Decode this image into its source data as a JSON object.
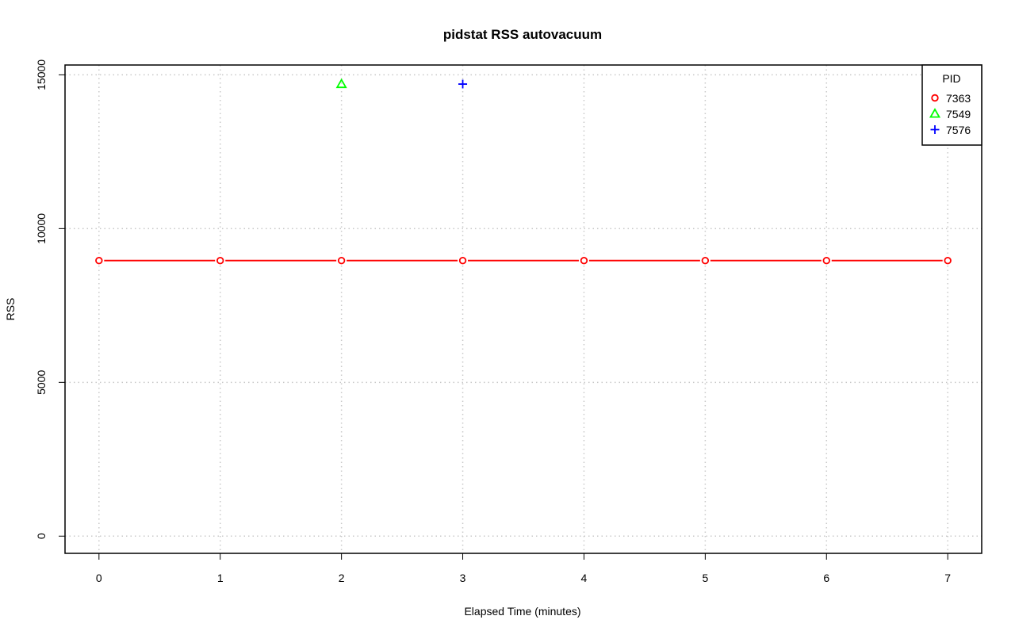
{
  "chart_data": {
    "type": "line",
    "title": "pidstat RSS autovacuum",
    "xlabel": "Elapsed Time (minutes)",
    "ylabel": "RSS",
    "xlim": [
      -0.28,
      7.28
    ],
    "ylim": [
      -560,
      15320
    ],
    "x_ticks": [
      0,
      1,
      2,
      3,
      4,
      5,
      6,
      7
    ],
    "y_ticks": [
      0,
      5000,
      10000,
      15000
    ],
    "grid": true,
    "legend": {
      "title": "PID",
      "position": "top-right"
    },
    "series": [
      {
        "name": "7363",
        "color": "#ff0000",
        "marker": "circle",
        "line": true,
        "points": [
          {
            "x": 0,
            "y": 8960
          },
          {
            "x": 1,
            "y": 8960
          },
          {
            "x": 2,
            "y": 8960
          },
          {
            "x": 3,
            "y": 8960
          },
          {
            "x": 4,
            "y": 8960
          },
          {
            "x": 5,
            "y": 8960
          },
          {
            "x": 6,
            "y": 8960
          },
          {
            "x": 7,
            "y": 8960
          }
        ]
      },
      {
        "name": "7549",
        "color": "#00ff00",
        "marker": "triangle",
        "line": false,
        "points": [
          {
            "x": 2,
            "y": 14700
          }
        ]
      },
      {
        "name": "7576",
        "color": "#0000ff",
        "marker": "plus",
        "line": false,
        "points": [
          {
            "x": 3,
            "y": 14700
          }
        ]
      }
    ]
  }
}
